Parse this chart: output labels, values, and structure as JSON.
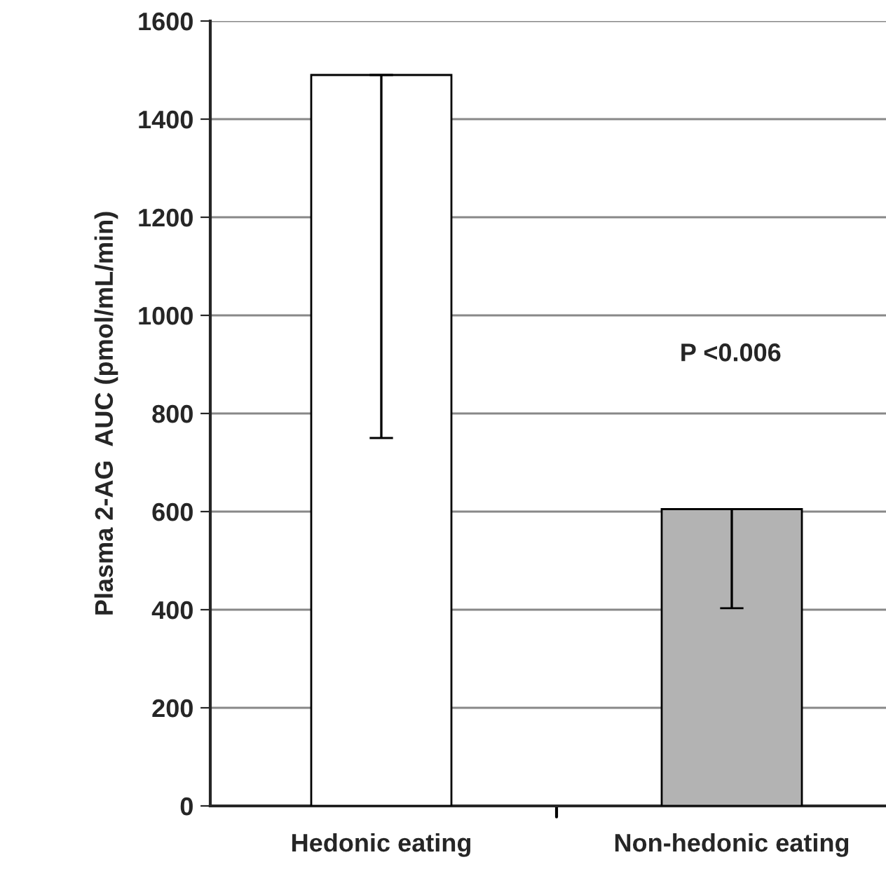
{
  "chart_data": {
    "type": "bar",
    "ylabel": "Plasma 2-AG  AUC (pmol/mL/min)",
    "categories": [
      "Hedonic eating",
      "Non-hedonic eating"
    ],
    "values": [
      1490,
      605
    ],
    "colors": [
      "#ffffff",
      "#b3b3b3"
    ],
    "errors": [
      [
        750,
        1490
      ],
      [
        403,
        605
      ]
    ],
    "ylim": [
      0,
      1600
    ],
    "yticks": [
      0,
      200,
      400,
      600,
      800,
      1000,
      1200,
      1400,
      1600
    ],
    "grid": "y",
    "annotations": [
      "P <0.006"
    ]
  }
}
